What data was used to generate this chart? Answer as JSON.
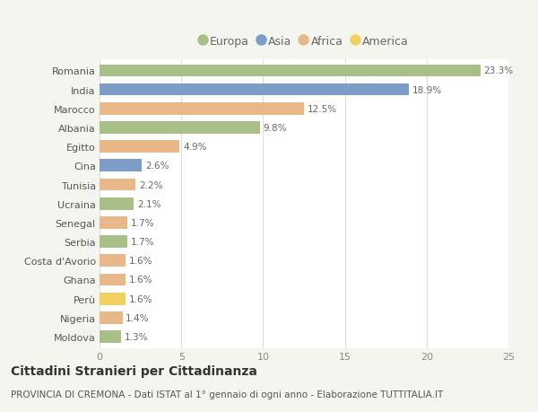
{
  "countries": [
    "Romania",
    "India",
    "Marocco",
    "Albania",
    "Egitto",
    "Cina",
    "Tunisia",
    "Ucraina",
    "Senegal",
    "Serbia",
    "Costa d'Avorio",
    "Ghana",
    "Perù",
    "Nigeria",
    "Moldova"
  ],
  "values": [
    23.3,
    18.9,
    12.5,
    9.8,
    4.9,
    2.6,
    2.2,
    2.1,
    1.7,
    1.7,
    1.6,
    1.6,
    1.6,
    1.4,
    1.3
  ],
  "continents": [
    "Europa",
    "Asia",
    "Africa",
    "Europa",
    "Africa",
    "Asia",
    "Africa",
    "Europa",
    "Africa",
    "Europa",
    "Africa",
    "Africa",
    "America",
    "Africa",
    "Europa"
  ],
  "continent_colors": {
    "Europa": "#a8c088",
    "Asia": "#7b9dc8",
    "Africa": "#e8b888",
    "America": "#f0d060"
  },
  "legend_order": [
    "Europa",
    "Asia",
    "Africa",
    "America"
  ],
  "title": "Cittadini Stranieri per Cittadinanza",
  "subtitle": "PROVINCIA DI CREMONA - Dati ISTAT al 1° gennaio di ogni anno - Elaborazione TUTTITALIA.IT",
  "xlim": [
    0,
    25
  ],
  "xticks": [
    0,
    5,
    10,
    15,
    20,
    25
  ],
  "background_color": "#f5f5f0",
  "bar_background": "#ffffff",
  "grid_color": "#dddddd",
  "title_fontsize": 10,
  "subtitle_fontsize": 7.5,
  "label_fontsize": 8,
  "value_fontsize": 7.5,
  "legend_fontsize": 9
}
